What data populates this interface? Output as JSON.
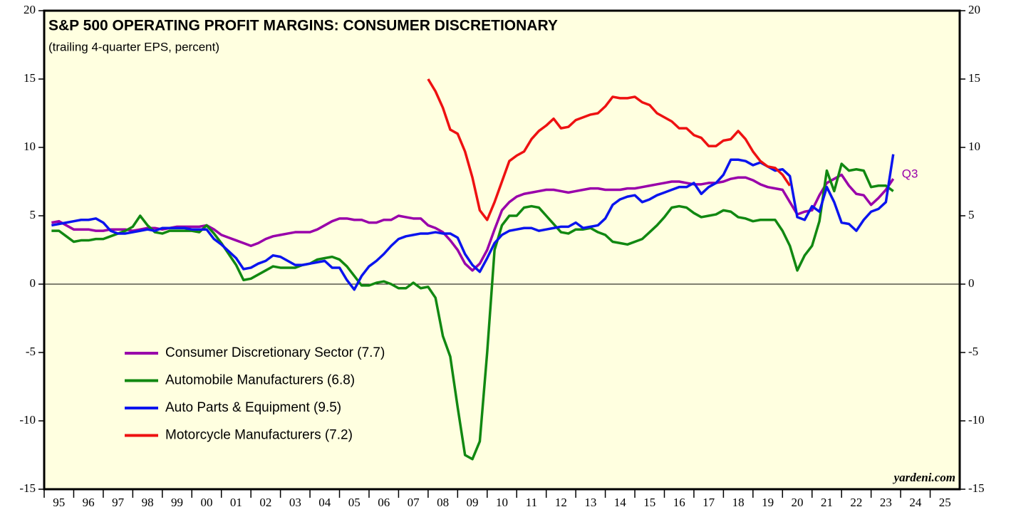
{
  "chart_data": {
    "type": "line",
    "title": "S&P 500 OPERATING PROFIT MARGINS: CONSUMER DISCRETIONARY",
    "subtitle": "(trailing 4-quarter EPS, percent)",
    "annotations": [
      "Q3",
      "yardeni.com"
    ],
    "xlim": [
      1995,
      2026
    ],
    "xticks": [
      {
        "value": 1995,
        "label": "95"
      },
      {
        "value": 1996,
        "label": "96"
      },
      {
        "value": 1997,
        "label": "97"
      },
      {
        "value": 1998,
        "label": "98"
      },
      {
        "value": 1999,
        "label": "99"
      },
      {
        "value": 2000,
        "label": "00"
      },
      {
        "value": 2001,
        "label": "01"
      },
      {
        "value": 2002,
        "label": "02"
      },
      {
        "value": 2003,
        "label": "03"
      },
      {
        "value": 2004,
        "label": "04"
      },
      {
        "value": 2005,
        "label": "05"
      },
      {
        "value": 2006,
        "label": "06"
      },
      {
        "value": 2007,
        "label": "07"
      },
      {
        "value": 2008,
        "label": "08"
      },
      {
        "value": 2009,
        "label": "09"
      },
      {
        "value": 2010,
        "label": "10"
      },
      {
        "value": 2011,
        "label": "11"
      },
      {
        "value": 2012,
        "label": "12"
      },
      {
        "value": 2013,
        "label": "13"
      },
      {
        "value": 2014,
        "label": "14"
      },
      {
        "value": 2015,
        "label": "15"
      },
      {
        "value": 2016,
        "label": "16"
      },
      {
        "value": 2017,
        "label": "17"
      },
      {
        "value": 2018,
        "label": "18"
      },
      {
        "value": 2019,
        "label": "19"
      },
      {
        "value": 2020,
        "label": "20"
      },
      {
        "value": 2021,
        "label": "21"
      },
      {
        "value": 2022,
        "label": "22"
      },
      {
        "value": 2023,
        "label": "23"
      },
      {
        "value": 2024,
        "label": "24"
      },
      {
        "value": 2025,
        "label": "25"
      }
    ],
    "ylim": [
      -15,
      20
    ],
    "yticks": [
      -15,
      -10,
      -5,
      0,
      5,
      10,
      15,
      20
    ],
    "x": [
      1995.25,
      1995.5,
      1995.75,
      1996,
      1996.25,
      1996.5,
      1996.75,
      1997,
      1997.25,
      1997.5,
      1997.75,
      1998,
      1998.25,
      1998.5,
      1998.75,
      1999,
      1999.25,
      1999.5,
      1999.75,
      2000,
      2000.25,
      2000.5,
      2000.75,
      2001,
      2001.25,
      2001.5,
      2001.75,
      2002,
      2002.25,
      2002.5,
      2002.75,
      2003,
      2003.25,
      2003.5,
      2003.75,
      2004,
      2004.25,
      2004.5,
      2004.75,
      2005,
      2005.25,
      2005.5,
      2005.75,
      2006,
      2006.25,
      2006.5,
      2006.75,
      2007,
      2007.25,
      2007.5,
      2007.75,
      2008,
      2008.25,
      2008.5,
      2008.75,
      2009,
      2009.25,
      2009.5,
      2009.75,
      2010,
      2010.25,
      2010.5,
      2010.75,
      2011,
      2011.25,
      2011.5,
      2011.75,
      2012,
      2012.25,
      2012.5,
      2012.75,
      2013,
      2013.25,
      2013.5,
      2013.75,
      2014,
      2014.25,
      2014.5,
      2014.75,
      2015,
      2015.25,
      2015.5,
      2015.75,
      2016,
      2016.25,
      2016.5,
      2016.75,
      2017,
      2017.25,
      2017.5,
      2017.75,
      2018,
      2018.25,
      2018.5,
      2018.75,
      2019,
      2019.25,
      2019.5,
      2019.75,
      2020,
      2020.25,
      2020.5,
      2020.75,
      2021,
      2021.25,
      2021.5,
      2021.75,
      2022,
      2022.25,
      2022.5,
      2022.75,
      2023,
      2023.25,
      2023.5,
      2023.75
    ],
    "series": [
      {
        "name": "Consumer Discretionary Sector (7.7)",
        "color": "#9900aa",
        "values": [
          4.5,
          4.6,
          4.3,
          4.0,
          4.0,
          4.0,
          3.9,
          3.9,
          4.0,
          4.0,
          4.0,
          3.9,
          4.0,
          4.1,
          4.1,
          4.0,
          4.1,
          4.2,
          4.2,
          4.2,
          4.2,
          4.3,
          4.0,
          3.6,
          3.4,
          3.2,
          3.0,
          2.8,
          3.0,
          3.3,
          3.5,
          3.6,
          3.7,
          3.8,
          3.8,
          3.8,
          4.0,
          4.3,
          4.6,
          4.8,
          4.8,
          4.7,
          4.7,
          4.5,
          4.5,
          4.7,
          4.7,
          5.0,
          4.9,
          4.8,
          4.8,
          4.3,
          4.1,
          3.8,
          3.2,
          2.5,
          1.5,
          1.0,
          1.5,
          2.5,
          4.0,
          5.4,
          6.0,
          6.4,
          6.6,
          6.7,
          6.8,
          6.9,
          6.9,
          6.8,
          6.7,
          6.8,
          6.9,
          7.0,
          7.0,
          6.9,
          6.9,
          6.9,
          7.0,
          7.0,
          7.1,
          7.2,
          7.3,
          7.4,
          7.5,
          7.5,
          7.4,
          7.3,
          7.3,
          7.4,
          7.4,
          7.5,
          7.7,
          7.8,
          7.8,
          7.6,
          7.3,
          7.1,
          7.0,
          6.9,
          6.0,
          5.1,
          5.3,
          5.4,
          6.5,
          7.4,
          7.7,
          8.0,
          7.2,
          6.6,
          6.5,
          5.8,
          6.3,
          6.9,
          7.7
        ]
      },
      {
        "name": "Automobile Manufacturers (6.8)",
        "color": "#118811",
        "values": [
          3.9,
          3.9,
          3.5,
          3.1,
          3.2,
          3.2,
          3.3,
          3.3,
          3.5,
          3.7,
          3.9,
          4.2,
          5.0,
          4.3,
          3.8,
          3.7,
          3.9,
          3.9,
          3.9,
          3.9,
          3.8,
          4.3,
          3.7,
          3.0,
          2.2,
          1.4,
          0.3,
          0.4,
          0.7,
          1.0,
          1.3,
          1.2,
          1.2,
          1.2,
          1.4,
          1.5,
          1.8,
          1.9,
          2.0,
          1.8,
          1.3,
          0.6,
          -0.1,
          -0.1,
          0.1,
          0.2,
          0.0,
          -0.3,
          -0.3,
          0.1,
          -0.3,
          -0.2,
          -1.0,
          -3.8,
          -5.3,
          -9.0,
          -12.5,
          -12.8,
          -11.5,
          -5.0,
          2.5,
          4.3,
          5.0,
          5.0,
          5.6,
          5.7,
          5.6,
          5.0,
          4.4,
          3.8,
          3.7,
          4.0,
          4.0,
          4.1,
          3.8,
          3.6,
          3.1,
          3.0,
          2.9,
          3.1,
          3.3,
          3.8,
          4.3,
          4.9,
          5.6,
          5.7,
          5.6,
          5.2,
          4.9,
          5.0,
          5.1,
          5.4,
          5.3,
          4.9,
          4.8,
          4.6,
          4.7,
          4.7,
          4.7,
          3.9,
          2.8,
          1.0,
          2.1,
          2.8,
          4.6,
          8.3,
          6.8,
          8.8,
          8.3,
          8.4,
          8.3,
          7.1,
          7.2,
          7.2,
          6.8
        ]
      },
      {
        "name": "Auto Parts & Equipment (9.5)",
        "color": "#0a14ee",
        "values": [
          4.3,
          4.4,
          4.5,
          4.6,
          4.7,
          4.7,
          4.8,
          4.5,
          3.9,
          3.7,
          3.7,
          3.8,
          3.9,
          4.0,
          3.9,
          4.1,
          4.1,
          4.1,
          4.1,
          4.0,
          4.0,
          4.0,
          3.3,
          2.9,
          2.4,
          1.9,
          1.1,
          1.2,
          1.5,
          1.7,
          2.1,
          2.0,
          1.7,
          1.4,
          1.4,
          1.5,
          1.6,
          1.7,
          1.2,
          1.2,
          0.3,
          -0.4,
          0.6,
          1.3,
          1.7,
          2.2,
          2.8,
          3.3,
          3.5,
          3.6,
          3.7,
          3.7,
          3.8,
          3.7,
          3.7,
          3.4,
          2.2,
          1.4,
          0.9,
          1.9,
          3.0,
          3.6,
          3.9,
          4.0,
          4.1,
          4.1,
          3.9,
          4.0,
          4.1,
          4.2,
          4.2,
          4.5,
          4.1,
          4.2,
          4.3,
          4.8,
          5.8,
          6.2,
          6.4,
          6.5,
          6.0,
          6.2,
          6.5,
          6.7,
          6.9,
          7.1,
          7.1,
          7.4,
          6.6,
          7.1,
          7.4,
          8.0,
          9.1,
          9.1,
          9.0,
          8.7,
          8.9,
          8.6,
          8.3,
          8.4,
          7.9,
          4.9,
          4.7,
          5.7,
          5.3,
          7.1,
          6.0,
          4.5,
          4.4,
          3.9,
          4.7,
          5.3,
          5.5,
          6.0,
          9.5
        ]
      },
      {
        "name": "Motorcycle Manufacturers (7.2)",
        "color": "#ee1111",
        "values": [
          null,
          null,
          null,
          null,
          null,
          null,
          null,
          null,
          null,
          null,
          null,
          null,
          null,
          null,
          null,
          null,
          null,
          null,
          null,
          null,
          null,
          null,
          null,
          null,
          null,
          null,
          null,
          null,
          null,
          null,
          null,
          null,
          null,
          null,
          null,
          null,
          null,
          null,
          null,
          null,
          null,
          null,
          null,
          null,
          null,
          null,
          null,
          null,
          null,
          null,
          null,
          15.0,
          14.1,
          12.9,
          11.3,
          11.0,
          9.7,
          7.8,
          5.4,
          4.7,
          6.0,
          7.5,
          9.0,
          9.4,
          9.7,
          10.6,
          11.2,
          11.6,
          12.1,
          11.4,
          11.5,
          12.0,
          12.2,
          12.4,
          12.5,
          13.0,
          13.7,
          13.6,
          13.6,
          13.7,
          13.3,
          13.1,
          12.5,
          12.2,
          11.9,
          11.4,
          11.4,
          10.9,
          10.7,
          10.1,
          10.1,
          10.5,
          10.6,
          11.2,
          10.6,
          9.7,
          9.0,
          8.6,
          8.5,
          8.0,
          7.2,
          null,
          null,
          null,
          null,
          null,
          null,
          null,
          null,
          null,
          null,
          null,
          null,
          null,
          null
        ]
      }
    ]
  }
}
